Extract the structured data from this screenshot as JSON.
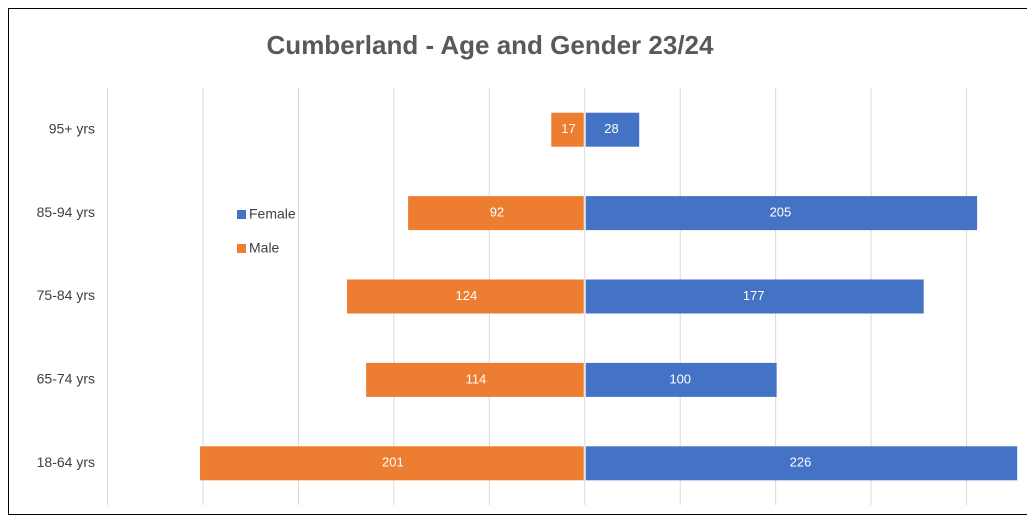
{
  "chart_data": {
    "type": "bar",
    "orientation": "horizontal",
    "title": "Cumberland - Age and Gender 23/24",
    "categories": [
      "95+ yrs",
      "85-94 yrs",
      "75-84 yrs",
      "65-74 yrs",
      "18-64 yrs"
    ],
    "series": [
      {
        "name": "Female",
        "color": "#4472c4",
        "values": [
          28,
          205,
          177,
          100,
          226
        ]
      },
      {
        "name": "Male",
        "color": "#ed7d31",
        "values": [
          -17,
          -92,
          -124,
          -114,
          -201
        ],
        "value_labels": [
          "17",
          "92",
          "124",
          "114",
          "201"
        ]
      }
    ],
    "xlim": [
      -250,
      228
    ],
    "xticks": [
      -250,
      -200,
      -150,
      -100,
      -50,
      0,
      50,
      100,
      150,
      200
    ],
    "grid": true,
    "legend": "left"
  }
}
